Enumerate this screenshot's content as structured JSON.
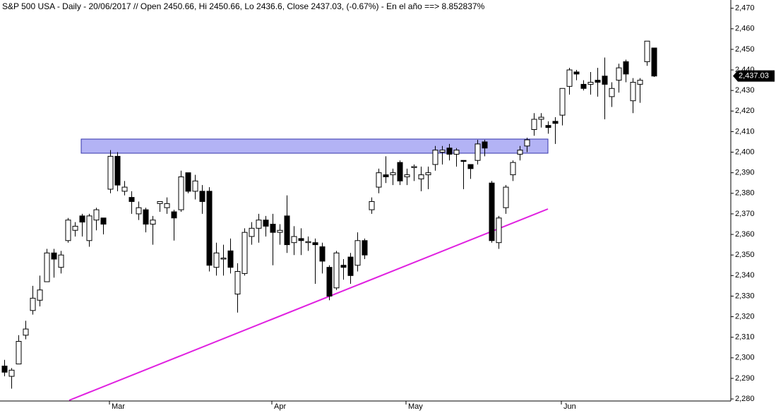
{
  "chart_data": {
    "type": "candlestick",
    "title": "S&P 500 USA - Daily - 20/06/2017 // Open 2450.66, Hi 2450.66, Lo 2436.6, Close 2437.03, (-0.67%) - En el año ==> 8.852837%",
    "categories": [
      null,
      null,
      null,
      null,
      null,
      null,
      null,
      null,
      null,
      null,
      null,
      null,
      null,
      null,
      null,
      "Mar",
      null,
      null,
      null,
      null,
      null,
      null,
      null,
      null,
      null,
      null,
      null,
      null,
      null,
      null,
      null,
      null,
      null,
      null,
      null,
      null,
      null,
      null,
      "Apr",
      null,
      null,
      null,
      null,
      null,
      null,
      null,
      null,
      null,
      null,
      null,
      null,
      null,
      null,
      null,
      null,
      null,
      null,
      "May",
      null,
      null,
      null,
      null,
      null,
      null,
      null,
      null,
      null,
      null,
      null,
      null,
      null,
      null,
      null,
      null,
      null,
      null,
      null,
      null,
      null,
      "Jun",
      null,
      null,
      null,
      null,
      null,
      null,
      null,
      null,
      null,
      null,
      null,
      null,
      null
    ],
    "open": [
      2296,
      2291,
      2297,
      2311,
      2323,
      2328,
      2337,
      2351,
      2344,
      2357,
      2362,
      2369,
      2357,
      2367,
      2368,
      2382,
      2398,
      2381,
      2378,
      2370,
      2372,
      2365,
      2375,
      2373,
      2371,
      2372,
      2390,
      2381,
      2381,
      2381,
      2344,
      2348,
      2352,
      2331,
      2341,
      2359,
      2363,
      2367,
      2365,
      2361,
      2369,
      2356,
      2358,
      2356,
      2356,
      2354,
      2344,
      2334,
      2345,
      2349,
      2345,
      2357,
      2372,
      2383,
      2389,
      2389,
      2395,
      2388,
      2392.5,
      2387,
      2389,
      2394,
      2400,
      2402,
      2399,
      2396,
      2394,
      2396,
      2405,
      2385,
      2356,
      2373,
      2389,
      2399,
      2403,
      2411,
      2416,
      2413,
      2415,
      2418,
      2432,
      2439,
      2433,
      2433,
      2435,
      2437,
      2427,
      2435,
      2444,
      2425,
      2433,
      2444,
      2450.66
    ],
    "high": [
      2299,
      2295,
      2311,
      2318,
      2335,
      2340,
      2353,
      2353,
      2352,
      2368,
      2366,
      2370,
      2370,
      2373,
      2368,
      2401,
      2400,
      2386,
      2381,
      2376,
      2373,
      2369,
      2376,
      2378,
      2372,
      2391,
      2390,
      2389,
      2384,
      2383,
      2356,
      2355,
      2358,
      2346,
      2363,
      2366,
      2370,
      2369,
      2370,
      2365,
      2379,
      2364,
      2363,
      2359,
      2358,
      2356,
      2345,
      2352,
      2348,
      2351,
      2361,
      2358,
      2378,
      2392,
      2398,
      2392,
      2396,
      2392,
      2394,
      2393,
      2393,
      2403,
      2403,
      2404,
      2402,
      2396,
      2394,
      2406,
      2406,
      2386,
      2369,
      2384,
      2396,
      2403,
      2407,
      2419,
      2419,
      2415,
      2417,
      2431,
      2441,
      2440,
      2435,
      2439,
      2441,
      2446,
      2434,
      2443,
      2445,
      2436,
      2436,
      2454,
      2450.66
    ],
    "low": [
      2291,
      2285,
      2297,
      2309,
      2321,
      2325,
      2337,
      2339,
      2341,
      2356,
      2359,
      2359,
      2354,
      2362,
      2360,
      2380,
      2381,
      2379,
      2370,
      2367,
      2361,
      2355,
      2371,
      2370,
      2357,
      2371,
      2380,
      2377,
      2370,
      2342,
      2340,
      2340,
      2341,
      2322,
      2340,
      2355,
      2356,
      2359,
      2345,
      2355,
      2351,
      2350,
      2350,
      2352,
      2336,
      2341,
      2328,
      2333,
      2338,
      2336,
      2342,
      2348,
      2370,
      2380,
      2385,
      2384,
      2384,
      2384,
      2386,
      2381,
      2382,
      2391,
      2394,
      2396,
      2393,
      2382,
      2387,
      2394,
      2398,
      2356,
      2353,
      2370,
      2386,
      2396,
      2400,
      2408,
      2412,
      2409,
      2404,
      2413,
      2428,
      2435,
      2430,
      2428,
      2427,
      2416,
      2422,
      2429,
      2434,
      2419,
      2424,
      2442,
      2436.6
    ],
    "close": [
      2293,
      2294,
      2308,
      2314,
      2329,
      2333,
      2351,
      2348,
      2350,
      2367,
      2364,
      2366,
      2369,
      2372,
      2365,
      2398,
      2384,
      2383,
      2376,
      2373,
      2365,
      2367,
      2376,
      2375,
      2368,
      2388,
      2381,
      2386,
      2376,
      2345,
      2351,
      2348.5,
      2344,
      2342,
      2361,
      2363,
      2367,
      2364,
      2361,
      2362,
      2355,
      2359,
      2357,
      2356.5,
      2355,
      2347,
      2330,
      2351,
      2344,
      2340,
      2357,
      2350,
      2376,
      2390,
      2388,
      2390,
      2386,
      2389,
      2393,
      2389,
      2390,
      2401,
      2401,
      2399,
      2401,
      2395.5,
      2392,
      2404,
      2402,
      2357,
      2368,
      2383,
      2395,
      2401,
      2406,
      2416,
      2417,
      2412,
      2414,
      2431,
      2440,
      2438,
      2431,
      2434,
      2434,
      2433,
      2431,
      2441,
      2438,
      2434,
      2435,
      2454,
      2437.03
    ],
    "up_color": "#ffffff",
    "down_color": "#000000",
    "last_price": {
      "value": 2437.03,
      "label": "2,437.03"
    },
    "ylim": [
      2279,
      2474
    ],
    "yticks": [
      {
        "value": 2280,
        "label": "2,280"
      },
      {
        "value": 2290,
        "label": "2,290"
      },
      {
        "value": 2300,
        "label": "2,300"
      },
      {
        "value": 2310,
        "label": "2,310"
      },
      {
        "value": 2320,
        "label": "2,320"
      },
      {
        "value": 2330,
        "label": "2,330"
      },
      {
        "value": 2340,
        "label": "2,340"
      },
      {
        "value": 2350,
        "label": "2,350"
      },
      {
        "value": 2360,
        "label": "2,360"
      },
      {
        "value": 2370,
        "label": "2,370"
      },
      {
        "value": 2380,
        "label": "2,380"
      },
      {
        "value": 2390,
        "label": "2,390"
      },
      {
        "value": 2400,
        "label": "2,400"
      },
      {
        "value": 2410,
        "label": "2,410"
      },
      {
        "value": 2420,
        "label": "2,420"
      },
      {
        "value": 2430,
        "label": "2,430"
      },
      {
        "value": 2440,
        "label": "2,440"
      },
      {
        "value": 2450,
        "label": "2,450"
      },
      {
        "value": 2460,
        "label": "2,460"
      },
      {
        "value": 2470,
        "label": "2,470"
      }
    ]
  }
}
